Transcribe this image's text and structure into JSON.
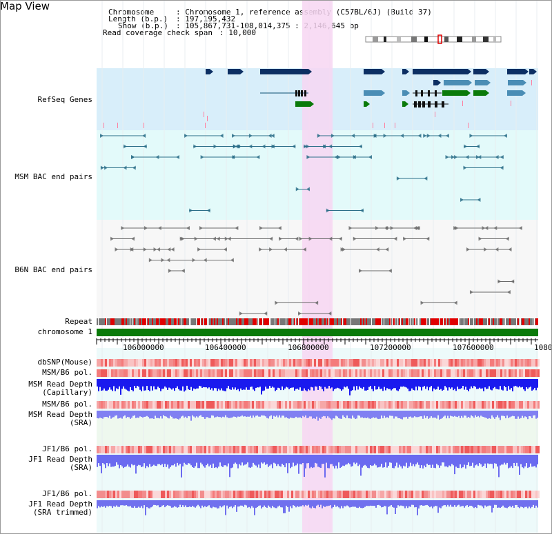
{
  "title": "Map View",
  "header": {
    "chromosome_key": "Chromosome",
    "chromosome_val": ": Chromosome 1, reference assembly (C57BL/6J) (Build 37)",
    "length_key": "Length (b.p.)",
    "length_val": ": 197,195,432",
    "show_key": "Show (b.p.)",
    "show_val": ": 105,867,731-108,014,375 : 2,146,645 bp",
    "coverage_key": "Read coverage check span",
    "coverage_val": ": 10,000"
  },
  "tracks": {
    "refseq": "RefSeq Genes",
    "msm_bac": "MSM BAC end pairs",
    "b6n_bac": "B6N BAC end pairs",
    "repeat": "Repeat",
    "chromosome": "chromosome 1",
    "dbsnp": "dbSNP(Mouse)",
    "msm_b6_pol_1": "MSM/B6 pol.",
    "msm_depth_cap_1": "MSM Read Depth",
    "msm_depth_cap_2": "(Capillary)",
    "msm_b6_pol_2": "MSM/B6 pol.",
    "msm_depth_sra_1": "MSM Read Depth",
    "msm_depth_sra_2": "(SRA)",
    "jf1_b6_pol_1": "JF1/B6 pol.",
    "jf1_depth_sra_1": "JF1 Read Depth",
    "jf1_depth_sra_2": "(SRA)",
    "jf1_b6_pol_2": "JF1/B6 pol.",
    "jf1_depth_trim_1": "JF1 Read Depth",
    "jf1_depth_trim_2": "(SRA trimmed)"
  },
  "axis": {
    "labels": [
      "106000000",
      "106400000",
      "106800000",
      "107200000",
      "107600000",
      "1080"
    ]
  },
  "colors": {
    "refseq_bg": "#d8eefa",
    "bac_bg": "#e3fafa",
    "highlight": "#f7d6f2",
    "refseq_label": "#1a1aa6",
    "msm_label": "#1f5f7a",
    "b6n_label": "#444444",
    "pol_label": "#e08a00",
    "depth_label": "#1a1aa6",
    "gene_dark": "#0d2f63",
    "gene_mid": "#4a8db5",
    "gene_green": "#0a7a0a",
    "msm_pair": "#2a6e88",
    "b6n_pair": "#6a6a6a",
    "chromosome": "#0a7a0a",
    "repeat_red": "#e00000"
  }
}
